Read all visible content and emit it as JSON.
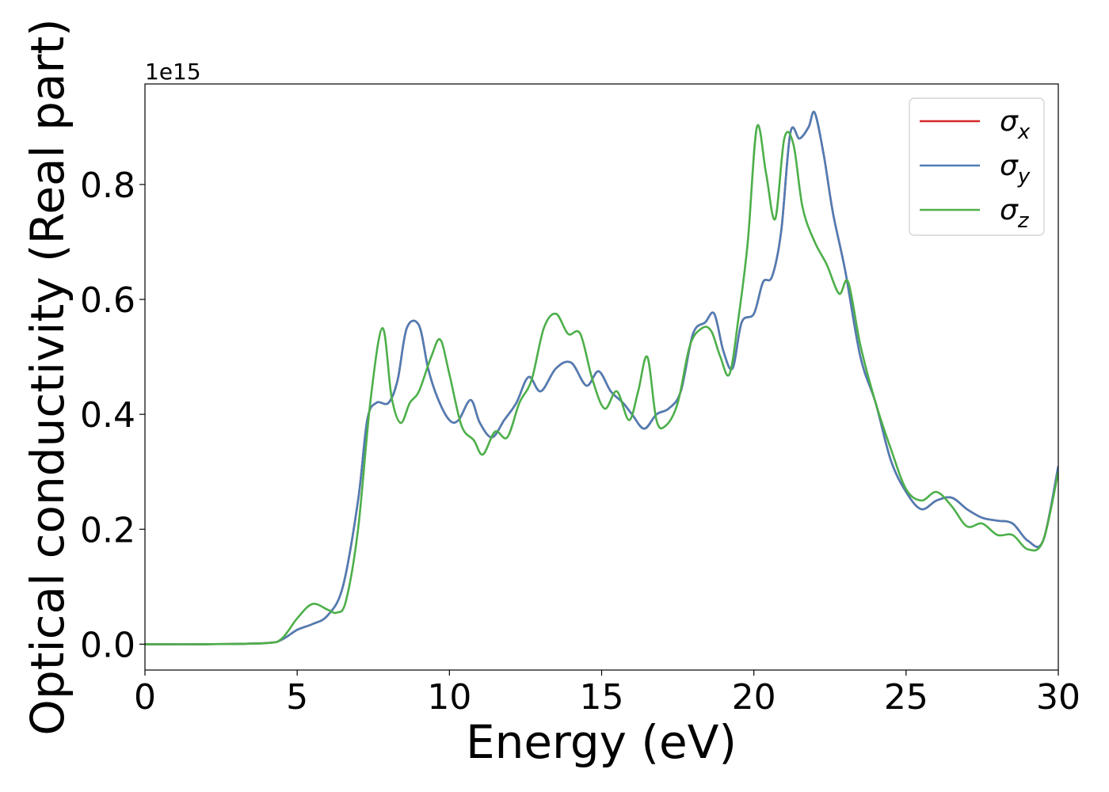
{
  "chart_data": {
    "type": "line",
    "xlabel": "Energy (eV)",
    "ylabel": "Optical conductivity (Real part)",
    "y_offset_label": "1e15",
    "xlim": [
      0,
      30
    ],
    "ylim": [
      -0.045,
      0.975
    ],
    "x_ticks": [
      0,
      5,
      10,
      15,
      20,
      25,
      30
    ],
    "y_ticks": [
      0.0,
      0.2,
      0.4,
      0.6,
      0.8
    ],
    "x_tick_labels": [
      "0",
      "5",
      "10",
      "15",
      "20",
      "25",
      "30"
    ],
    "y_tick_labels": [
      "0.0",
      "0.2",
      "0.4",
      "0.6",
      "0.8"
    ],
    "grid": false,
    "legend_position": "top-right",
    "series": [
      {
        "name": "σx",
        "base": "σ",
        "sub": "x",
        "color": "#d62728",
        "x": [
          0,
          2,
          4,
          4.5,
          5,
          5.5,
          6,
          6.5,
          7,
          7.3,
          7.6,
          8,
          8.3,
          8.6,
          9,
          9.3,
          9.6,
          10,
          10.3,
          10.7,
          11,
          11.4,
          11.8,
          12.2,
          12.6,
          13,
          13.5,
          14,
          14.5,
          14.9,
          15.3,
          15.7,
          16,
          16.4,
          16.8,
          17.2,
          17.6,
          18,
          18.4,
          18.7,
          19,
          19.3,
          19.6,
          20,
          20.3,
          20.6,
          20.9,
          21.2,
          21.5,
          21.8,
          22,
          22.3,
          22.6,
          23,
          23.5,
          24,
          24.5,
          25,
          25.5,
          26,
          26.5,
          27,
          27.5,
          28,
          28.5,
          29,
          29.5,
          30
        ],
        "y": [
          0,
          0,
          0.002,
          0.008,
          0.025,
          0.035,
          0.05,
          0.1,
          0.25,
          0.39,
          0.42,
          0.42,
          0.46,
          0.55,
          0.555,
          0.48,
          0.43,
          0.39,
          0.39,
          0.425,
          0.385,
          0.36,
          0.39,
          0.42,
          0.465,
          0.44,
          0.48,
          0.49,
          0.45,
          0.475,
          0.44,
          0.42,
          0.4,
          0.375,
          0.4,
          0.41,
          0.44,
          0.54,
          0.56,
          0.575,
          0.51,
          0.48,
          0.56,
          0.575,
          0.63,
          0.64,
          0.72,
          0.89,
          0.88,
          0.9,
          0.925,
          0.85,
          0.75,
          0.65,
          0.5,
          0.42,
          0.32,
          0.265,
          0.235,
          0.25,
          0.255,
          0.235,
          0.22,
          0.215,
          0.21,
          0.18,
          0.18,
          0.31
        ]
      },
      {
        "name": "σy",
        "base": "σ",
        "sub": "y",
        "color": "#4e7db5",
        "x": [
          0,
          2,
          4,
          4.5,
          5,
          5.5,
          6,
          6.5,
          7,
          7.3,
          7.6,
          8,
          8.3,
          8.6,
          9,
          9.3,
          9.6,
          10,
          10.3,
          10.7,
          11,
          11.4,
          11.8,
          12.2,
          12.6,
          13,
          13.5,
          14,
          14.5,
          14.9,
          15.3,
          15.7,
          16,
          16.4,
          16.8,
          17.2,
          17.6,
          18,
          18.4,
          18.7,
          19,
          19.3,
          19.6,
          20,
          20.3,
          20.6,
          20.9,
          21.2,
          21.5,
          21.8,
          22,
          22.3,
          22.6,
          23,
          23.5,
          24,
          24.5,
          25,
          25.5,
          26,
          26.5,
          27,
          27.5,
          28,
          28.5,
          29,
          29.5,
          30
        ],
        "y": [
          0,
          0,
          0.002,
          0.008,
          0.025,
          0.035,
          0.05,
          0.1,
          0.25,
          0.39,
          0.42,
          0.42,
          0.46,
          0.55,
          0.555,
          0.48,
          0.43,
          0.39,
          0.39,
          0.425,
          0.385,
          0.36,
          0.39,
          0.42,
          0.465,
          0.44,
          0.48,
          0.49,
          0.45,
          0.475,
          0.44,
          0.42,
          0.4,
          0.375,
          0.4,
          0.41,
          0.44,
          0.54,
          0.56,
          0.575,
          0.51,
          0.48,
          0.56,
          0.575,
          0.63,
          0.64,
          0.72,
          0.89,
          0.88,
          0.9,
          0.925,
          0.85,
          0.75,
          0.65,
          0.5,
          0.42,
          0.32,
          0.265,
          0.235,
          0.25,
          0.255,
          0.235,
          0.22,
          0.215,
          0.21,
          0.18,
          0.18,
          0.31
        ]
      },
      {
        "name": "σz",
        "base": "σ",
        "sub": "z",
        "color": "#4daf4a",
        "x": [
          0,
          2,
          4,
          4.5,
          5,
          5.5,
          6,
          6.3,
          6.6,
          7,
          7.4,
          7.8,
          8.1,
          8.4,
          8.7,
          9,
          9.4,
          9.7,
          10,
          10.4,
          10.8,
          11.1,
          11.5,
          11.9,
          12.3,
          12.7,
          13.1,
          13.5,
          13.9,
          14.3,
          14.7,
          15.1,
          15.5,
          15.9,
          16.2,
          16.5,
          16.8,
          17.1,
          17.5,
          17.9,
          18.3,
          18.6,
          18.9,
          19.2,
          19.5,
          19.8,
          20.1,
          20.4,
          20.7,
          21,
          21.3,
          21.6,
          22,
          22.4,
          22.8,
          23.1,
          23.5,
          24,
          24.5,
          25,
          25.5,
          26,
          26.5,
          27,
          27.5,
          28,
          28.5,
          29,
          29.5,
          30
        ],
        "y": [
          0,
          0,
          0.002,
          0.01,
          0.045,
          0.07,
          0.06,
          0.055,
          0.075,
          0.2,
          0.42,
          0.55,
          0.43,
          0.385,
          0.42,
          0.44,
          0.5,
          0.53,
          0.47,
          0.38,
          0.355,
          0.33,
          0.37,
          0.36,
          0.42,
          0.46,
          0.55,
          0.575,
          0.54,
          0.54,
          0.46,
          0.41,
          0.44,
          0.39,
          0.44,
          0.5,
          0.39,
          0.38,
          0.42,
          0.52,
          0.55,
          0.545,
          0.5,
          0.47,
          0.57,
          0.7,
          0.9,
          0.82,
          0.74,
          0.88,
          0.87,
          0.76,
          0.7,
          0.66,
          0.61,
          0.63,
          0.52,
          0.42,
          0.34,
          0.27,
          0.25,
          0.265,
          0.24,
          0.205,
          0.21,
          0.19,
          0.19,
          0.165,
          0.18,
          0.3
        ]
      }
    ]
  }
}
